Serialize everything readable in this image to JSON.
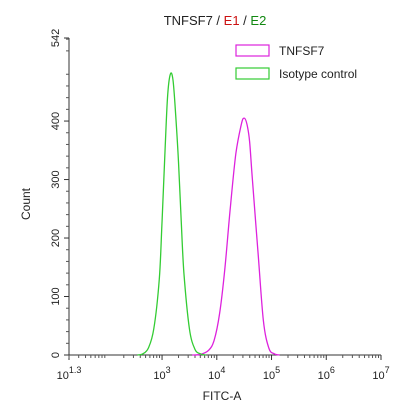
{
  "chart_data": {
    "type": "histogram",
    "title_parts": [
      {
        "text": "TNFSF7",
        "color": "#222222"
      },
      {
        "text": " / ",
        "color": "#222222"
      },
      {
        "text": "E1",
        "color": "#cc1111"
      },
      {
        "text": " / ",
        "color": "#222222"
      },
      {
        "text": "E2",
        "color": "#118811"
      }
    ],
    "xlabel": "FITC-A",
    "ylabel": "Count",
    "x_scale": "log",
    "xlim": [
      1.3,
      7
    ],
    "ylim": [
      0,
      542
    ],
    "x_ticks": [
      {
        "pos": 1.3,
        "base": "10",
        "exp": "1.3"
      },
      {
        "pos": 3,
        "base": "10",
        "exp": "3"
      },
      {
        "pos": 4,
        "base": "10",
        "exp": "4"
      },
      {
        "pos": 5,
        "base": "10",
        "exp": "5"
      },
      {
        "pos": 6,
        "base": "10",
        "exp": "6"
      },
      {
        "pos": 7,
        "base": "10",
        "exp": "7"
      }
    ],
    "y_ticks": [
      0,
      100,
      200,
      300,
      400,
      542
    ],
    "legend": [
      {
        "label": "TNFSF7",
        "color": "#dd22dd"
      },
      {
        "label": "Isotype control",
        "color": "#33cc33"
      }
    ],
    "series": [
      {
        "name": "TNFSF7",
        "color": "#dd22dd",
        "x": [
          3.55,
          3.7,
          3.85,
          3.95,
          4.05,
          4.15,
          4.25,
          4.35,
          4.45,
          4.5,
          4.55,
          4.6,
          4.65,
          4.75,
          4.85,
          4.95,
          5.05,
          5.15
        ],
        "y": [
          0,
          1,
          8,
          25,
          70,
          150,
          255,
          345,
          395,
          405,
          395,
          365,
          300,
          180,
          60,
          12,
          2,
          0
        ]
      },
      {
        "name": "Isotype control",
        "color": "#33cc33",
        "x": [
          2.55,
          2.65,
          2.75,
          2.85,
          2.95,
          3.0,
          3.05,
          3.1,
          3.15,
          3.2,
          3.25,
          3.3,
          3.35,
          3.4,
          3.5,
          3.6,
          3.7,
          3.8
        ],
        "y": [
          0,
          2,
          12,
          45,
          130,
          230,
          340,
          440,
          480,
          470,
          410,
          330,
          230,
          140,
          45,
          10,
          2,
          0
        ]
      }
    ]
  }
}
